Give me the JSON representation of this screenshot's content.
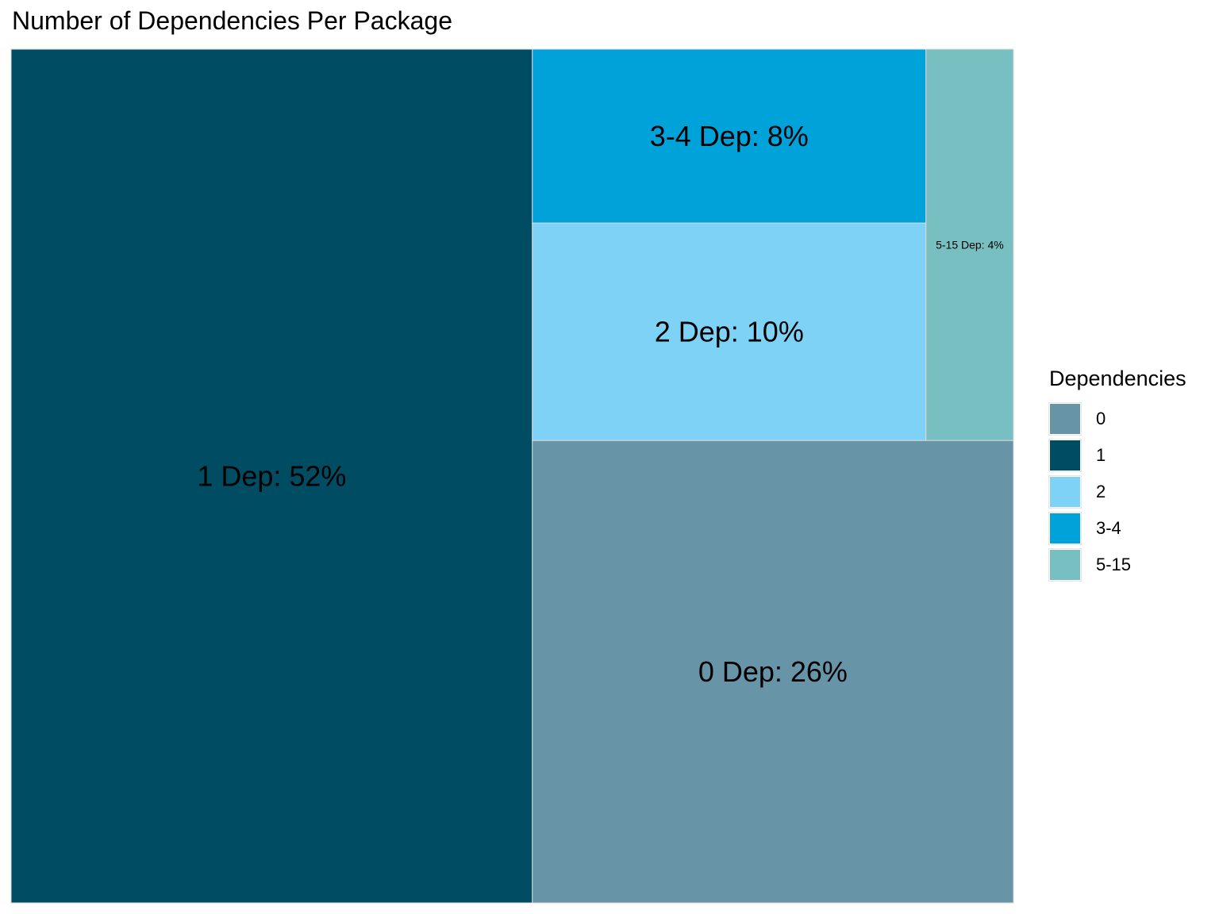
{
  "chart_data": {
    "type": "treemap",
    "title": "Number of Dependencies Per Package",
    "legend": {
      "title": "Dependencies",
      "placement": "right",
      "items": [
        {
          "label": "0",
          "color": "#6894a8"
        },
        {
          "label": "1",
          "color": "#004c63"
        },
        {
          "label": "2",
          "color": "#7dd2f6"
        },
        {
          "label": "3-4",
          "color": "#00a2da"
        },
        {
          "label": "5-15",
          "color": "#77bfc1"
        }
      ]
    },
    "tiles": [
      {
        "group": "1",
        "value": 52,
        "label": "1 Dep: 52%",
        "color": "#004c63"
      },
      {
        "group": "0",
        "value": 26,
        "label": "0 Dep: 26%",
        "color": "#6894a8"
      },
      {
        "group": "2",
        "value": 10,
        "label": "2 Dep: 10%",
        "color": "#7dd2f6"
      },
      {
        "group": "3-4",
        "value": 8,
        "label": "3-4 Dep: 8%",
        "color": "#00a2da"
      },
      {
        "group": "5-15",
        "value": 4,
        "label": "5-15 Dep: 4%",
        "color": "#77bfc1"
      }
    ]
  }
}
